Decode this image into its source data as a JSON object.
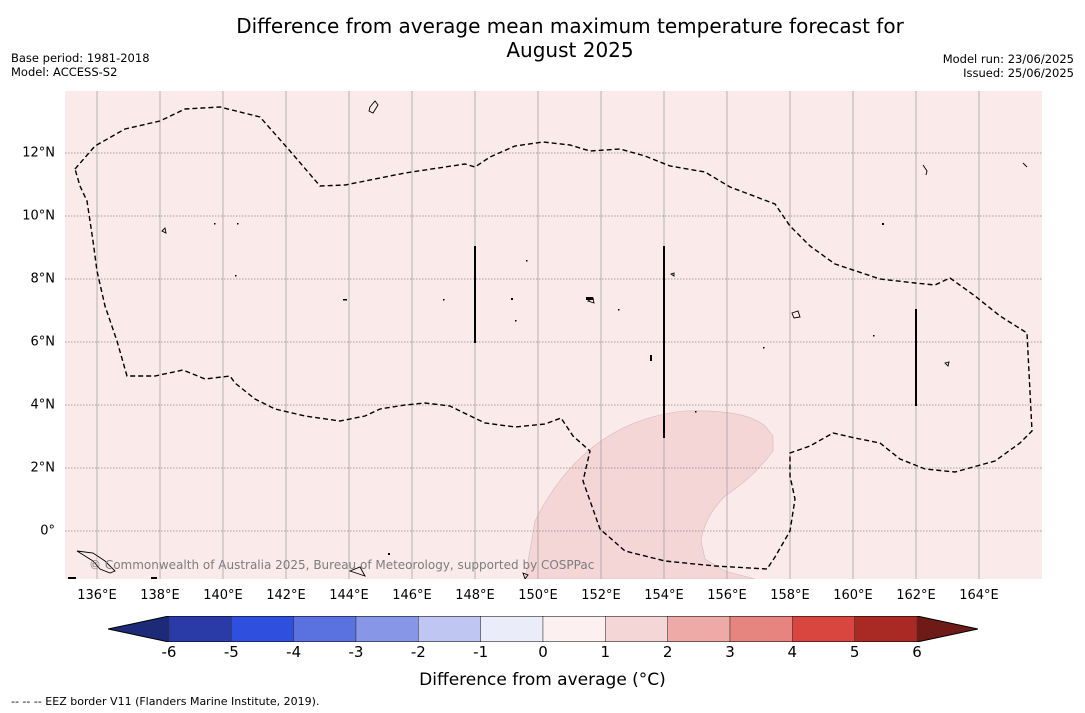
{
  "title_line1": "Difference from average mean maximum temperature forecast for",
  "title_line2": "August 2025",
  "base_period": "Base period: 1981-2018",
  "model": "Model: ACCESS-S2",
  "model_run": "Model run: 23/06/2025",
  "issued": "Issued: 25/06/2025",
  "copyright": "© Commonwealth of Australia 2025, Bureau of Meteorology, supported by COSPPac",
  "lon_labels": [
    "136°E",
    "138°E",
    "140°E",
    "142°E",
    "144°E",
    "146°E",
    "148°E",
    "150°E",
    "152°E",
    "154°E",
    "156°E",
    "158°E",
    "160°E",
    "162°E",
    "164°E"
  ],
  "lat_labels": [
    "12°N",
    "10°N",
    "8°N",
    "6°N",
    "4°N",
    "2°N",
    "0°"
  ],
  "colorbar": {
    "title": "Difference from average ($^\\circ$C)",
    "title_display": "Difference from average (°C)",
    "ticks": [
      "-6",
      "-5",
      "-4",
      "-3",
      "-2",
      "-1",
      "0",
      "1",
      "2",
      "3",
      "4",
      "5",
      "6"
    ],
    "colors": [
      "#2a3ba8",
      "#2f4fdf",
      "#5a72e0",
      "#8896e8",
      "#c0c6f2",
      "#ebecf9",
      "#fdf0f0",
      "#f4d6d6",
      "#edaaa6",
      "#e6847f",
      "#d9463f",
      "#a92a25"
    ],
    "under_color": "#1c2a78",
    "over_color": "#6e1a17"
  },
  "legend_note": "--  --  -- EEZ border V11 (Flanders Marine Institute, 2019).",
  "map_colors": {
    "background": "#fbeaea",
    "warm_region": "#f4d6d6"
  }
}
